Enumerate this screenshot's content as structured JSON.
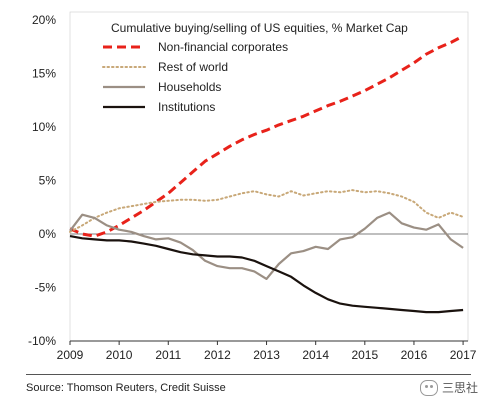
{
  "chart_data": {
    "type": "line",
    "title": "Cumulative buying/selling of US equities, % Market Cap",
    "xlim": [
      2009,
      2017.1
    ],
    "ylim": [
      -10,
      20
    ],
    "x_ticks": [
      "2009",
      "2010",
      "2011",
      "2012",
      "2013",
      "2014",
      "2015",
      "2016",
      "2017"
    ],
    "y_ticks": [
      {
        "value": 20,
        "label": "20%"
      },
      {
        "value": 15,
        "label": "15%"
      },
      {
        "value": 10,
        "label": "10%"
      },
      {
        "value": 5,
        "label": "5%"
      },
      {
        "value": 0,
        "label": "0%"
      },
      {
        "value": -5,
        "label": "-5%"
      },
      {
        "value": -10,
        "label": "-10%"
      }
    ],
    "legend_position": "top-left inside",
    "series": [
      {
        "name": "Non-financial corporates",
        "color": "#e8221a",
        "style": "dashed",
        "x": [
          2009.0,
          2009.25,
          2009.5,
          2009.75,
          2010.0,
          2010.25,
          2010.5,
          2010.75,
          2011.0,
          2011.25,
          2011.5,
          2011.75,
          2012.0,
          2012.25,
          2012.5,
          2012.75,
          2013.0,
          2013.25,
          2013.5,
          2013.75,
          2014.0,
          2014.25,
          2014.5,
          2014.75,
          2015.0,
          2015.25,
          2015.5,
          2015.75,
          2016.0,
          2016.25,
          2016.5,
          2016.75,
          2017.0
        ],
        "y": [
          0.5,
          0.0,
          -0.2,
          0.2,
          0.8,
          1.5,
          2.2,
          3.0,
          3.8,
          4.8,
          5.8,
          6.8,
          7.5,
          8.2,
          8.8,
          9.3,
          9.7,
          10.2,
          10.6,
          11.0,
          11.5,
          12.0,
          12.4,
          12.9,
          13.4,
          14.0,
          14.6,
          15.3,
          16.0,
          16.8,
          17.4,
          17.9,
          18.5
        ]
      },
      {
        "name": "Rest of world",
        "color": "#c8a878",
        "style": "dotted",
        "x": [
          2009.0,
          2009.25,
          2009.5,
          2009.75,
          2010.0,
          2010.25,
          2010.5,
          2010.75,
          2011.0,
          2011.25,
          2011.5,
          2011.75,
          2012.0,
          2012.25,
          2012.5,
          2012.75,
          2013.0,
          2013.25,
          2013.5,
          2013.75,
          2014.0,
          2014.25,
          2014.5,
          2014.75,
          2015.0,
          2015.25,
          2015.5,
          2015.75,
          2016.0,
          2016.25,
          2016.5,
          2016.75,
          2017.0
        ],
        "y": [
          0.2,
          0.8,
          1.5,
          2.0,
          2.4,
          2.6,
          2.8,
          3.0,
          3.1,
          3.2,
          3.2,
          3.1,
          3.2,
          3.5,
          3.8,
          4.0,
          3.7,
          3.5,
          4.0,
          3.6,
          3.8,
          4.0,
          3.9,
          4.1,
          3.9,
          4.0,
          3.8,
          3.5,
          3.0,
          2.0,
          1.5,
          2.0,
          1.6
        ]
      },
      {
        "name": "Households",
        "color": "#9b8f84",
        "style": "solid",
        "x": [
          2009.0,
          2009.25,
          2009.5,
          2009.75,
          2010.0,
          2010.25,
          2010.5,
          2010.75,
          2011.0,
          2011.25,
          2011.5,
          2011.75,
          2012.0,
          2012.25,
          2012.5,
          2012.75,
          2013.0,
          2013.25,
          2013.5,
          2013.75,
          2014.0,
          2014.25,
          2014.5,
          2014.75,
          2015.0,
          2015.25,
          2015.5,
          2015.75,
          2016.0,
          2016.25,
          2016.5,
          2016.75,
          2017.0
        ],
        "y": [
          0.3,
          1.8,
          1.5,
          0.8,
          0.4,
          0.2,
          -0.2,
          -0.5,
          -0.4,
          -0.8,
          -1.5,
          -2.5,
          -3.0,
          -3.2,
          -3.2,
          -3.5,
          -4.2,
          -2.8,
          -1.8,
          -1.6,
          -1.2,
          -1.4,
          -0.5,
          -0.3,
          0.5,
          1.5,
          2.0,
          1.0,
          0.6,
          0.4,
          0.9,
          -0.5,
          -1.3
        ]
      },
      {
        "name": "Institutions",
        "color": "#1a120e",
        "style": "solid",
        "x": [
          2009.0,
          2009.25,
          2009.5,
          2009.75,
          2010.0,
          2010.25,
          2010.5,
          2010.75,
          2011.0,
          2011.25,
          2011.5,
          2011.75,
          2012.0,
          2012.25,
          2012.5,
          2012.75,
          2013.0,
          2013.25,
          2013.5,
          2013.75,
          2014.0,
          2014.25,
          2014.5,
          2014.75,
          2015.0,
          2015.25,
          2015.5,
          2015.75,
          2016.0,
          2016.25,
          2016.5,
          2016.75,
          2017.0
        ],
        "y": [
          -0.2,
          -0.4,
          -0.5,
          -0.6,
          -0.6,
          -0.7,
          -0.9,
          -1.1,
          -1.4,
          -1.7,
          -1.9,
          -2.0,
          -2.1,
          -2.1,
          -2.2,
          -2.5,
          -3.0,
          -3.5,
          -4.0,
          -4.8,
          -5.5,
          -6.1,
          -6.5,
          -6.7,
          -6.8,
          -6.9,
          -7.0,
          -7.1,
          -7.2,
          -7.3,
          -7.3,
          -7.2,
          -7.1
        ]
      }
    ]
  },
  "footer": {
    "source": "Source: Thomson Reuters, Credit Suisse",
    "watermark": "三思社"
  }
}
